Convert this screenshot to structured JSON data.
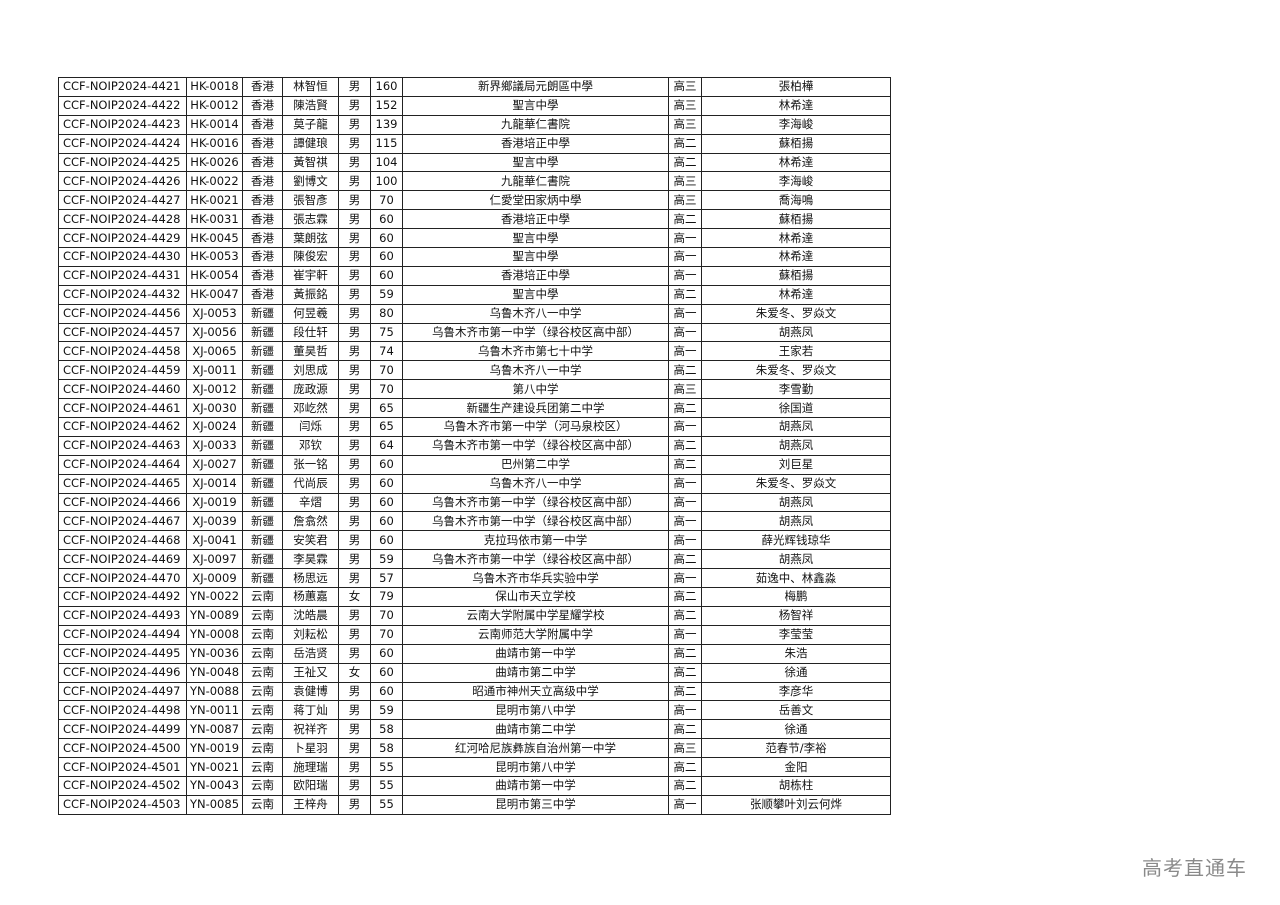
{
  "rows": [
    [
      "CCF-NOIP2024-4421",
      "HK-0018",
      "香港",
      "林智恒",
      "男",
      "160",
      "新界鄉議局元朗區中學",
      "高三",
      "張柏樺"
    ],
    [
      "CCF-NOIP2024-4422",
      "HK-0012",
      "香港",
      "陳浩賢",
      "男",
      "152",
      "聖言中學",
      "高三",
      "林希達"
    ],
    [
      "CCF-NOIP2024-4423",
      "HK-0014",
      "香港",
      "莫子龍",
      "男",
      "139",
      "九龍華仁書院",
      "高三",
      "李海峻"
    ],
    [
      "CCF-NOIP2024-4424",
      "HK-0016",
      "香港",
      "譚健琅",
      "男",
      "115",
      "香港培正中學",
      "高二",
      "蘇栢揚"
    ],
    [
      "CCF-NOIP2024-4425",
      "HK-0026",
      "香港",
      "黃智祺",
      "男",
      "104",
      "聖言中學",
      "高二",
      "林希達"
    ],
    [
      "CCF-NOIP2024-4426",
      "HK-0022",
      "香港",
      "劉博文",
      "男",
      "100",
      "九龍華仁書院",
      "高三",
      "李海峻"
    ],
    [
      "CCF-NOIP2024-4427",
      "HK-0021",
      "香港",
      "張智彥",
      "男",
      "70",
      "仁愛堂田家炳中學",
      "高三",
      "喬海鳴"
    ],
    [
      "CCF-NOIP2024-4428",
      "HK-0031",
      "香港",
      "張志霖",
      "男",
      "60",
      "香港培正中學",
      "高二",
      "蘇栢揚"
    ],
    [
      "CCF-NOIP2024-4429",
      "HK-0045",
      "香港",
      "葉朗弦",
      "男",
      "60",
      "聖言中學",
      "高一",
      "林希達"
    ],
    [
      "CCF-NOIP2024-4430",
      "HK-0053",
      "香港",
      "陳俊宏",
      "男",
      "60",
      "聖言中學",
      "高一",
      "林希達"
    ],
    [
      "CCF-NOIP2024-4431",
      "HK-0054",
      "香港",
      "崔宇軒",
      "男",
      "60",
      "香港培正中學",
      "高一",
      "蘇栢揚"
    ],
    [
      "CCF-NOIP2024-4432",
      "HK-0047",
      "香港",
      "黃振銘",
      "男",
      "59",
      "聖言中學",
      "高二",
      "林希達"
    ],
    [
      "CCF-NOIP2024-4456",
      "XJ-0053",
      "新疆",
      "何昱羲",
      "男",
      "80",
      "乌鲁木齐八一中学",
      "高一",
      "朱爱冬、罗焱文"
    ],
    [
      "CCF-NOIP2024-4457",
      "XJ-0056",
      "新疆",
      "段仕轩",
      "男",
      "75",
      "乌鲁木齐市第一中学（绿谷校区高中部）",
      "高一",
      "胡燕凤"
    ],
    [
      "CCF-NOIP2024-4458",
      "XJ-0065",
      "新疆",
      "董昊哲",
      "男",
      "74",
      "乌鲁木齐市第七十中学",
      "高一",
      "王家若"
    ],
    [
      "CCF-NOIP2024-4459",
      "XJ-0011",
      "新疆",
      "刘思成",
      "男",
      "70",
      "乌鲁木齐八一中学",
      "高二",
      "朱爱冬、罗焱文"
    ],
    [
      "CCF-NOIP2024-4460",
      "XJ-0012",
      "新疆",
      "庞政源",
      "男",
      "70",
      "第八中学",
      "高三",
      "李雪勤"
    ],
    [
      "CCF-NOIP2024-4461",
      "XJ-0030",
      "新疆",
      "邓屹然",
      "男",
      "65",
      "新疆生产建设兵团第二中学",
      "高二",
      "徐国道"
    ],
    [
      "CCF-NOIP2024-4462",
      "XJ-0024",
      "新疆",
      "闫烁",
      "男",
      "65",
      "乌鲁木齐市第一中学（河马泉校区）",
      "高一",
      "胡燕凤"
    ],
    [
      "CCF-NOIP2024-4463",
      "XJ-0033",
      "新疆",
      "邓钦",
      "男",
      "64",
      "乌鲁木齐市第一中学（绿谷校区高中部）",
      "高二",
      "胡燕凤"
    ],
    [
      "CCF-NOIP2024-4464",
      "XJ-0027",
      "新疆",
      "张一铭",
      "男",
      "60",
      "巴州第二中学",
      "高二",
      "刘巨星"
    ],
    [
      "CCF-NOIP2024-4465",
      "XJ-0014",
      "新疆",
      "代尚辰",
      "男",
      "60",
      "乌鲁木齐八一中学",
      "高一",
      "朱爱冬、罗焱文"
    ],
    [
      "CCF-NOIP2024-4466",
      "XJ-0019",
      "新疆",
      "辛熠",
      "男",
      "60",
      "乌鲁木齐市第一中学（绿谷校区高中部）",
      "高一",
      "胡燕凤"
    ],
    [
      "CCF-NOIP2024-4467",
      "XJ-0039",
      "新疆",
      "詹翕然",
      "男",
      "60",
      "乌鲁木齐市第一中学（绿谷校区高中部）",
      "高一",
      "胡燕凤"
    ],
    [
      "CCF-NOIP2024-4468",
      "XJ-0041",
      "新疆",
      "安笑君",
      "男",
      "60",
      "克拉玛依市第一中学",
      "高一",
      "薛光辉钱琼华"
    ],
    [
      "CCF-NOIP2024-4469",
      "XJ-0097",
      "新疆",
      "李昊霖",
      "男",
      "59",
      "乌鲁木齐市第一中学（绿谷校区高中部）",
      "高二",
      "胡燕凤"
    ],
    [
      "CCF-NOIP2024-4470",
      "XJ-0009",
      "新疆",
      "杨思远",
      "男",
      "57",
      "乌鲁木齐市华兵实验中学",
      "高一",
      "茹逸中、林鑫淼"
    ],
    [
      "CCF-NOIP2024-4492",
      "YN-0022",
      "云南",
      "杨蕙嘉",
      "女",
      "79",
      "保山市天立学校",
      "高二",
      "梅鹏"
    ],
    [
      "CCF-NOIP2024-4493",
      "YN-0089",
      "云南",
      "沈皓晨",
      "男",
      "70",
      "云南大学附属中学星耀学校",
      "高二",
      "杨智祥"
    ],
    [
      "CCF-NOIP2024-4494",
      "YN-0008",
      "云南",
      "刘耘松",
      "男",
      "70",
      "云南师范大学附属中学",
      "高一",
      "李莹莹"
    ],
    [
      "CCF-NOIP2024-4495",
      "YN-0036",
      "云南",
      "岳浩贤",
      "男",
      "60",
      "曲靖市第一中学",
      "高二",
      "朱浩"
    ],
    [
      "CCF-NOIP2024-4496",
      "YN-0048",
      "云南",
      "王祉又",
      "女",
      "60",
      "曲靖市第二中学",
      "高二",
      "徐通"
    ],
    [
      "CCF-NOIP2024-4497",
      "YN-0088",
      "云南",
      "袁健博",
      "男",
      "60",
      "昭通市神州天立高级中学",
      "高二",
      "李彦华"
    ],
    [
      "CCF-NOIP2024-4498",
      "YN-0011",
      "云南",
      "蒋丁灿",
      "男",
      "59",
      "昆明市第八中学",
      "高一",
      "岳善文"
    ],
    [
      "CCF-NOIP2024-4499",
      "YN-0087",
      "云南",
      "祝祥齐",
      "男",
      "58",
      "曲靖市第二中学",
      "高二",
      "徐通"
    ],
    [
      "CCF-NOIP2024-4500",
      "YN-0019",
      "云南",
      "卜星羽",
      "男",
      "58",
      "红河哈尼族彝族自治州第一中学",
      "高三",
      "范春节/李裕"
    ],
    [
      "CCF-NOIP2024-4501",
      "YN-0021",
      "云南",
      "施理瑞",
      "男",
      "55",
      "昆明市第八中学",
      "高二",
      "金阳"
    ],
    [
      "CCF-NOIP2024-4502",
      "YN-0043",
      "云南",
      "欧阳瑞",
      "男",
      "55",
      "曲靖市第一中学",
      "高二",
      "胡栋柱"
    ],
    [
      "CCF-NOIP2024-4503",
      "YN-0085",
      "云南",
      "王梓舟",
      "男",
      "55",
      "昆明市第三中学",
      "高一",
      "张顺攀叶刘云何烨"
    ]
  ],
  "watermark": "高考直通车"
}
